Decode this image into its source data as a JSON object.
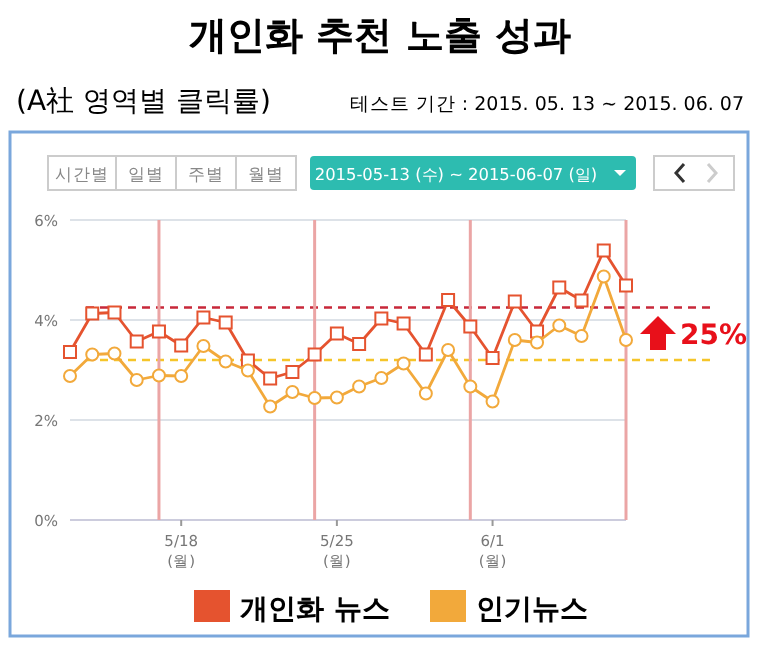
{
  "chart_data": {
    "type": "line",
    "title": "개인화 추천 노출 성과",
    "subtitle": "(A社 영역별 클릭률)",
    "annotations": [
      "테스트 기간 : 2015. 05. 13 ~ 2015. 06. 07",
      "시간별",
      "일별",
      "주별",
      "월별",
      "2015-05-13 (수)  ~  2015-06-07 (일)",
      "25%"
    ],
    "x": [
      "2015-05-13",
      "2015-05-14",
      "2015-05-15",
      "2015-05-16",
      "2015-05-17",
      "2015-05-18",
      "2015-05-19",
      "2015-05-20",
      "2015-05-21",
      "2015-05-22",
      "2015-05-23",
      "2015-05-24",
      "2015-05-25",
      "2015-05-26",
      "2015-05-27",
      "2015-05-28",
      "2015-05-29",
      "2015-05-30",
      "2015-05-31",
      "2015-06-01",
      "2015-06-02",
      "2015-06-03",
      "2015-06-04",
      "2015-06-05",
      "2015-06-06",
      "2015-06-07"
    ],
    "series": [
      {
        "name": "개인화 뉴스",
        "color": "#e5532f",
        "marker": "square",
        "values": [
          3.36,
          4.13,
          4.15,
          3.57,
          3.77,
          3.49,
          4.05,
          3.95,
          3.19,
          2.83,
          2.96,
          3.31,
          3.73,
          3.52,
          4.03,
          3.93,
          3.31,
          4.4,
          3.87,
          3.24,
          4.37,
          3.77,
          4.65,
          4.39,
          5.39,
          4.69
        ]
      },
      {
        "name": "인기뉴스",
        "color": "#f2a93b",
        "marker": "circle",
        "values": [
          2.88,
          3.31,
          3.33,
          2.8,
          2.89,
          2.88,
          3.48,
          3.17,
          2.99,
          2.27,
          2.56,
          2.44,
          2.45,
          2.67,
          2.84,
          3.13,
          2.53,
          3.4,
          2.67,
          2.37,
          3.6,
          3.55,
          3.89,
          3.68,
          4.87,
          3.6
        ]
      }
    ],
    "xlim": [
      "2015-05-13",
      "2015-06-07"
    ],
    "xticks": [
      {
        "value": "2015-05-18",
        "label": "5/18\n(월)"
      },
      {
        "value": "2015-05-25",
        "label": "5/25\n(월)"
      },
      {
        "value": "2015-06-01",
        "label": "6/1\n(월)"
      }
    ],
    "ylim": [
      0,
      6
    ],
    "yticks": [
      {
        "value": 0,
        "label": "0%"
      },
      {
        "value": 2,
        "label": "2%"
      },
      {
        "value": 4,
        "label": "4%"
      },
      {
        "value": 6,
        "label": "6%"
      }
    ],
    "ref_lines": [
      {
        "axis": "y",
        "value": 4.25,
        "color": "#c8283a",
        "line_style": "dashed"
      },
      {
        "axis": "y",
        "value": 3.2,
        "color": "#f5c52a",
        "line_style": "dashed"
      },
      {
        "axis": "x",
        "value": "2015-05-17",
        "color": "#eba5a5",
        "line_style": "solid"
      },
      {
        "axis": "x",
        "value": "2015-05-24",
        "color": "#eba5a5",
        "line_style": "solid"
      },
      {
        "axis": "x",
        "value": "2015-05-31",
        "color": "#eba5a5",
        "line_style": "solid"
      },
      {
        "axis": "x",
        "value": "2015-06-07",
        "color": "#eba5a5",
        "line_style": "solid"
      }
    ],
    "grid": "y",
    "legend": "bottom",
    "line_style": "solid"
  }
}
